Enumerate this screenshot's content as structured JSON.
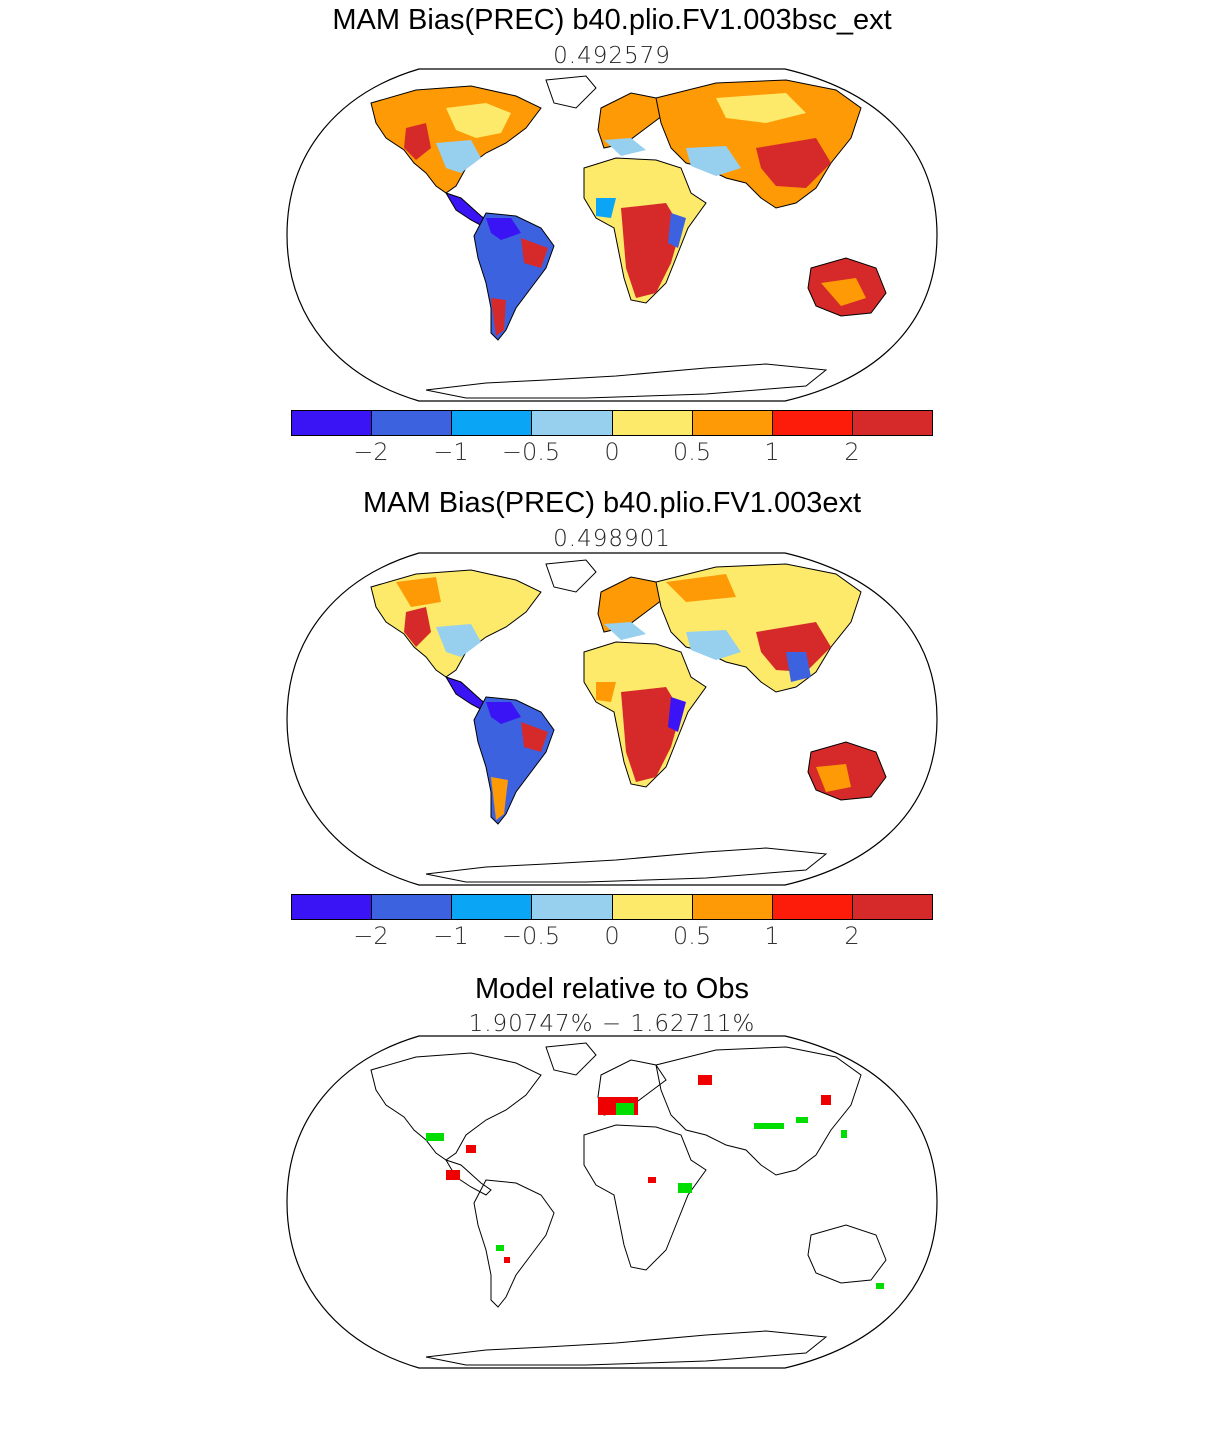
{
  "panels": [
    {
      "title": "MAM Bias(PREC) b40.plio.FV1.003bsc_ext",
      "subtitle": "0.492579",
      "has_colorbar": true
    },
    {
      "title": "MAM Bias(PREC) b40.plio.FV1.003ext",
      "subtitle": "0.498901",
      "has_colorbar": true
    },
    {
      "title": "Model relative to Obs",
      "subtitle": "1.90747% − 1.62711%",
      "has_colorbar": false
    }
  ],
  "colorbar": {
    "colors": [
      "#3a14f5",
      "#3d62e0",
      "#0ba5f5",
      "#96d0ee",
      "#fdea6a",
      "#fd9a06",
      "#fd1c0a",
      "#d62a2a"
    ],
    "labels": [
      "−2",
      "−1",
      "−0.5",
      "0",
      "0.5",
      "1",
      "2"
    ]
  },
  "map_colors": {
    "land_outline": "#000000",
    "better": "#00dd00",
    "worse": "#ee0000"
  }
}
